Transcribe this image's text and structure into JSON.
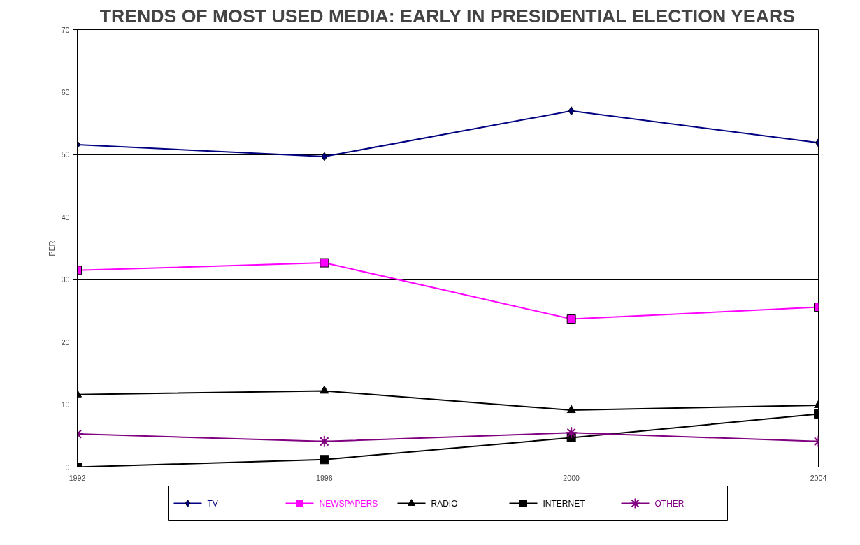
{
  "chart_data": {
    "type": "line",
    "title": "TRENDS OF MOST USED MEDIA: EARLY IN PRESIDENTIAL ELECTION YEARS",
    "ylabel": "PER",
    "x": [
      1992,
      1996,
      2000,
      2004
    ],
    "xlim": [
      1992,
      2004
    ],
    "xticks": [
      1992,
      1996,
      2000,
      2004
    ],
    "ylim": [
      0,
      70
    ],
    "yticks": [
      0,
      10,
      20,
      30,
      40,
      50,
      60,
      70
    ],
    "grid": "y",
    "legend": "bottom",
    "series": [
      {
        "name": "TV",
        "color": "#000080",
        "marker": "diamond",
        "values": [
          51.6,
          49.7,
          57.0,
          51.9
        ]
      },
      {
        "name": "NEWSPAPERS",
        "color": "#ff00ff",
        "marker": "square",
        "values": [
          31.5,
          32.7,
          23.7,
          25.6
        ]
      },
      {
        "name": "RADIO",
        "color": "#000000",
        "marker": "triangle",
        "values": [
          11.6,
          12.2,
          9.1,
          9.9
        ]
      },
      {
        "name": "INTERNET",
        "color": "#000000",
        "marker": "square",
        "values": [
          0,
          1.2,
          4.7,
          8.5
        ]
      },
      {
        "name": "OTHER",
        "color": "#800080",
        "marker": "cross",
        "values": [
          5.3,
          4.1,
          5.5,
          4.1
        ]
      }
    ]
  }
}
